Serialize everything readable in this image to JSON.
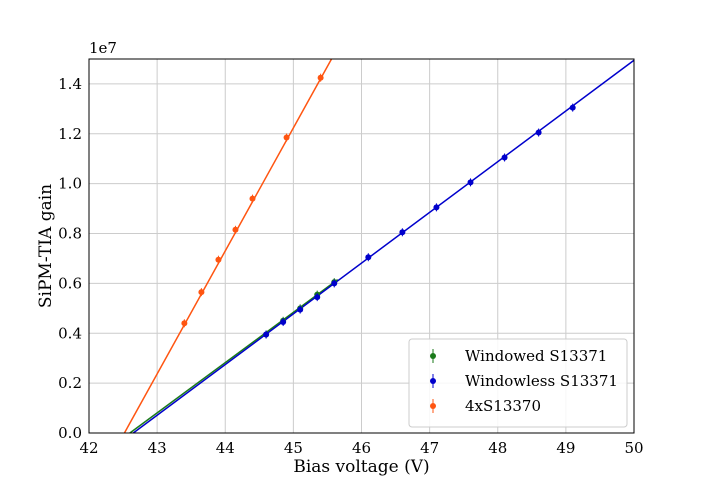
{
  "chart_data": {
    "type": "scatter",
    "title": "",
    "xlabel": "Bias voltage (V)",
    "ylabel": "SiPM-TIA gain",
    "y_multiplier_label": "1e7",
    "xlim": [
      42,
      50
    ],
    "ylim": [
      0,
      1.5
    ],
    "x_ticks": [
      "42",
      "43",
      "44",
      "45",
      "46",
      "47",
      "48",
      "49",
      "50"
    ],
    "y_ticks": [
      "0.0",
      "0.2",
      "0.4",
      "0.6",
      "0.8",
      "1.0",
      "1.2",
      "1.4"
    ],
    "grid": true,
    "legend_position": "lower-right",
    "series": [
      {
        "name": "Windowed S13371",
        "color": "#1a7a1a",
        "x": [
          44.6,
          44.85,
          45.1,
          45.35,
          45.6
        ],
        "y": [
          0.395,
          0.45,
          0.5,
          0.555,
          0.605
        ],
        "fit": {
          "x": [
            42.6,
            45.65
          ],
          "y": [
            0.0,
            0.615
          ]
        }
      },
      {
        "name": "Windowless S13371",
        "color": "#0000cc",
        "x": [
          44.6,
          44.85,
          45.1,
          45.35,
          45.6,
          46.1,
          46.6,
          47.1,
          47.6,
          48.1,
          48.6,
          49.1
        ],
        "y": [
          0.395,
          0.445,
          0.495,
          0.545,
          0.6,
          0.705,
          0.805,
          0.905,
          1.005,
          1.105,
          1.205,
          1.305
        ],
        "fit": {
          "x": [
            42.65,
            50.0
          ],
          "y": [
            0.0,
            1.495
          ]
        }
      },
      {
        "name": "4xS13370",
        "color": "#ff5511",
        "x": [
          43.4,
          43.65,
          43.9,
          44.15,
          44.4,
          44.9,
          45.4
        ],
        "y": [
          0.44,
          0.565,
          0.695,
          0.815,
          0.94,
          1.185,
          1.425
        ],
        "fit": {
          "x": [
            42.52,
            45.56
          ],
          "y": [
            0.0,
            1.5
          ]
        }
      }
    ]
  }
}
